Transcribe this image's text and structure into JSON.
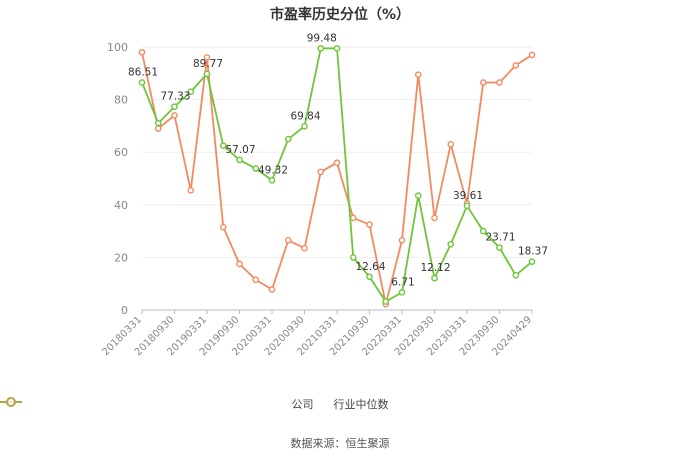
{
  "chart_data": {
    "type": "line",
    "title": "市盈率历史分位（%）",
    "x": [
      "20180331",
      "20180630",
      "20180930",
      "20181231",
      "20190331",
      "20190630",
      "20190930",
      "20191231",
      "20200331",
      "20200630",
      "20200930",
      "20201231",
      "20210331",
      "20210630",
      "20210930",
      "20211231",
      "20220331",
      "20220630",
      "20220930",
      "20221231",
      "20230331",
      "20230630",
      "20230930",
      "20231231",
      "20240429"
    ],
    "x_tick_labels": [
      "20180331",
      "20180930",
      "20190331",
      "20190930",
      "20200331",
      "20200930",
      "20210331",
      "20210930",
      "20220331",
      "20220930",
      "20230331",
      "20230930",
      "20240429"
    ],
    "ylim": [
      0,
      100
    ],
    "y_ticks": [
      0,
      20,
      40,
      60,
      80,
      100
    ],
    "grid": true,
    "legend_position": "bottom",
    "series": [
      {
        "name": "公司",
        "color": "#6cc638",
        "values": [
          86.51,
          71.0,
          77.33,
          83.0,
          89.77,
          62.5,
          57.07,
          53.8,
          49.32,
          65.0,
          69.84,
          99.48,
          99.48,
          20.0,
          12.64,
          3.2,
          6.71,
          43.5,
          12.12,
          25.0,
          39.61,
          30.0,
          23.71,
          13.2,
          18.37
        ],
        "labels": {
          "0": "86.51",
          "2": "77.33",
          "4": "89.77",
          "6": "57.07",
          "8": "49.32",
          "10": "69.84",
          "11": "99.48",
          "14": "12.64",
          "16": "6.71",
          "18": "12.12",
          "20": "39.61",
          "22": "23.71",
          "24": "18.37"
        }
      },
      {
        "name": "行业中位数",
        "color": "#f4895f",
        "values": [
          98.0,
          69.0,
          74.0,
          45.5,
          96.0,
          31.5,
          17.5,
          11.5,
          7.8,
          26.5,
          23.5,
          52.5,
          56.0,
          35.0,
          32.5,
          2.2,
          26.5,
          89.5,
          35.0,
          63.0,
          40.5,
          86.5,
          86.5,
          93.0,
          97.0
        ]
      }
    ]
  },
  "source_text": "数据来源：恒生聚源"
}
